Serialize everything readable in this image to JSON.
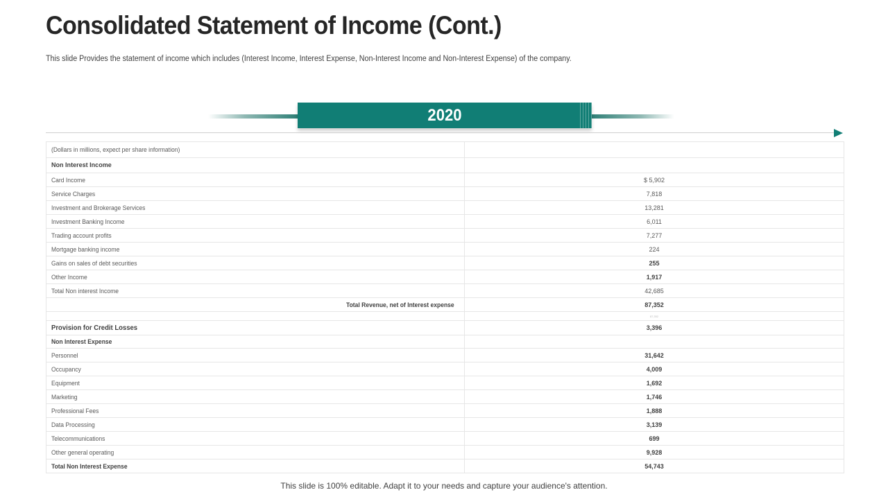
{
  "slide": {
    "title": "Consolidated Statement of Income (Cont.)",
    "subtitle": "This slide Provides the statement of income which includes (Interest Income, Interest Expense, Non-Interest Income and Non-Interest Expense) of the company.",
    "year": "2020",
    "footer": "This slide is 100% editable. Adapt it to your needs and capture your audience's attention."
  },
  "colors": {
    "accent": "#117e75",
    "title": "#262626",
    "text": "#595959",
    "grid": "#e6e6e6"
  },
  "table": {
    "header_label": "(Dollars in millions, expect per share information)",
    "non_interest_income_heading": "Non Interest Income",
    "income_rows": [
      {
        "label": "Card Income",
        "value": "$ 5,902",
        "bold": false
      },
      {
        "label": "Service Charges",
        "value": "7,818",
        "bold": false
      },
      {
        "label": "Investment and Brokerage Services",
        "value": "13,281",
        "bold": false
      },
      {
        "label": "Investment Banking Income",
        "value": "6,011",
        "bold": false
      },
      {
        "label": "Trading account profits",
        "value": "7,277",
        "bold": false
      },
      {
        "label": "Mortgage banking income",
        "value": "224",
        "bold": false
      },
      {
        "label": "Gains on sales of debt securities",
        "value": "255",
        "bold": true
      },
      {
        "label": "Other Income",
        "value": "1,917",
        "bold": true
      },
      {
        "label": "Total Non interest Income",
        "value": "42,685",
        "bold": false
      }
    ],
    "total_revenue": {
      "label": "Total Revenue, net of Interest expense",
      "value": "87,352"
    },
    "tiny_value": "87,352",
    "provision": {
      "label": "Provision for Credit Losses",
      "value": "3,396"
    },
    "non_interest_expense_heading": "Non Interest Expense",
    "expense_rows": [
      {
        "label": "Personnel",
        "value": "31,642"
      },
      {
        "label": "Occupancy",
        "value": "4,009"
      },
      {
        "label": "Equipment",
        "value": "1,692"
      },
      {
        "label": "Marketing",
        "value": "1,746"
      },
      {
        "label": "Professional Fees",
        "value": "1,888"
      },
      {
        "label": "Data Processing",
        "value": "3,139"
      },
      {
        "label": "Telecommunications",
        "value": "699"
      },
      {
        "label": "Other general operating",
        "value": "9,928"
      }
    ],
    "total_expense": {
      "label": "Total Non Interest Expense",
      "value": "54,743"
    }
  }
}
